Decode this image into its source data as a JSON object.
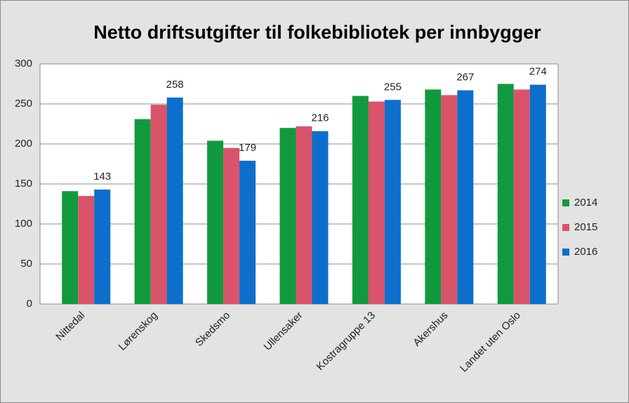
{
  "chart_data": {
    "type": "bar",
    "title": "Netto driftsutgifter til folkebibliotek per innbygger",
    "categories": [
      "Nittedal",
      "Lørenskog",
      "Skedsmo",
      "Ullensaker",
      "Kostragruppe 13",
      "Akershus",
      "Landet uten Oslo"
    ],
    "series": [
      {
        "name": "2014",
        "color": "#119a3d",
        "values": [
          141,
          231,
          204,
          220,
          260,
          268,
          275
        ]
      },
      {
        "name": "2015",
        "color": "#d9546a",
        "values": [
          135,
          249,
          195,
          222,
          253,
          261,
          268
        ]
      },
      {
        "name": "2016",
        "color": "#0c6fcc",
        "values": [
          143,
          258,
          179,
          216,
          255,
          267,
          274
        ],
        "show_labels": true
      }
    ],
    "ylim": [
      0,
      300
    ],
    "yticks": [
      0,
      50,
      100,
      150,
      200,
      250,
      300
    ],
    "grid": true,
    "legend": "right"
  }
}
